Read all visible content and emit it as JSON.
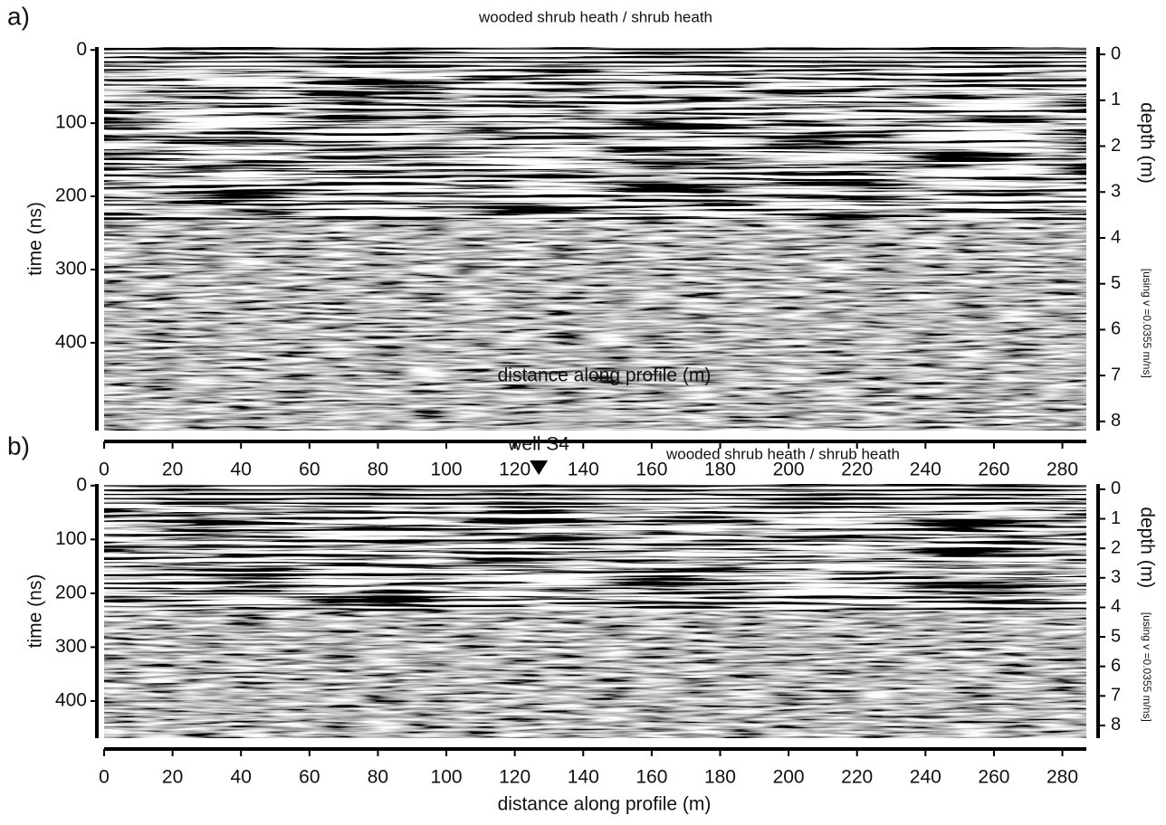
{
  "chart_data": [
    {
      "type": "radargram",
      "panel_label": "a)",
      "title": "wooded shrub heath / shrub heath",
      "xlabel": "distance along profile (m)",
      "ylabel": "time (ns)",
      "y2label": "depth (m)",
      "y2note": "[using v =0.0355 m/ns]",
      "xlim": [
        0,
        287
      ],
      "xticks": [
        0,
        20,
        40,
        60,
        80,
        100,
        120,
        140,
        160,
        180,
        200,
        220,
        240,
        260,
        280
      ],
      "ylim": [
        -4,
        520
      ],
      "yticks": [
        0,
        100,
        200,
        300,
        400
      ],
      "y2lim": [
        -0.16,
        8.2
      ],
      "y2ticks": [
        0,
        1,
        2,
        3,
        4,
        5,
        6,
        7,
        8
      ]
    },
    {
      "type": "radargram",
      "panel_label": "b)",
      "title": "wooded shrub heath / shrub heath",
      "xlabel": "distance along profile (m)",
      "ylabel": "time (ns)",
      "y2label": "depth (m)",
      "y2note": "[using v =0.0355 m/ns]",
      "annotation": {
        "text": "well S4",
        "x": 127
      },
      "xlim": [
        0,
        287
      ],
      "xticks": [
        0,
        20,
        40,
        60,
        80,
        100,
        120,
        140,
        160,
        180,
        200,
        220,
        240,
        260,
        280
      ],
      "ylim": [
        -3,
        469
      ],
      "yticks": [
        0,
        100,
        200,
        300,
        400
      ],
      "y2lim": [
        -0.18,
        8.43
      ],
      "y2ticks": [
        0,
        1,
        2,
        3,
        4,
        5,
        6,
        7,
        8
      ]
    }
  ]
}
